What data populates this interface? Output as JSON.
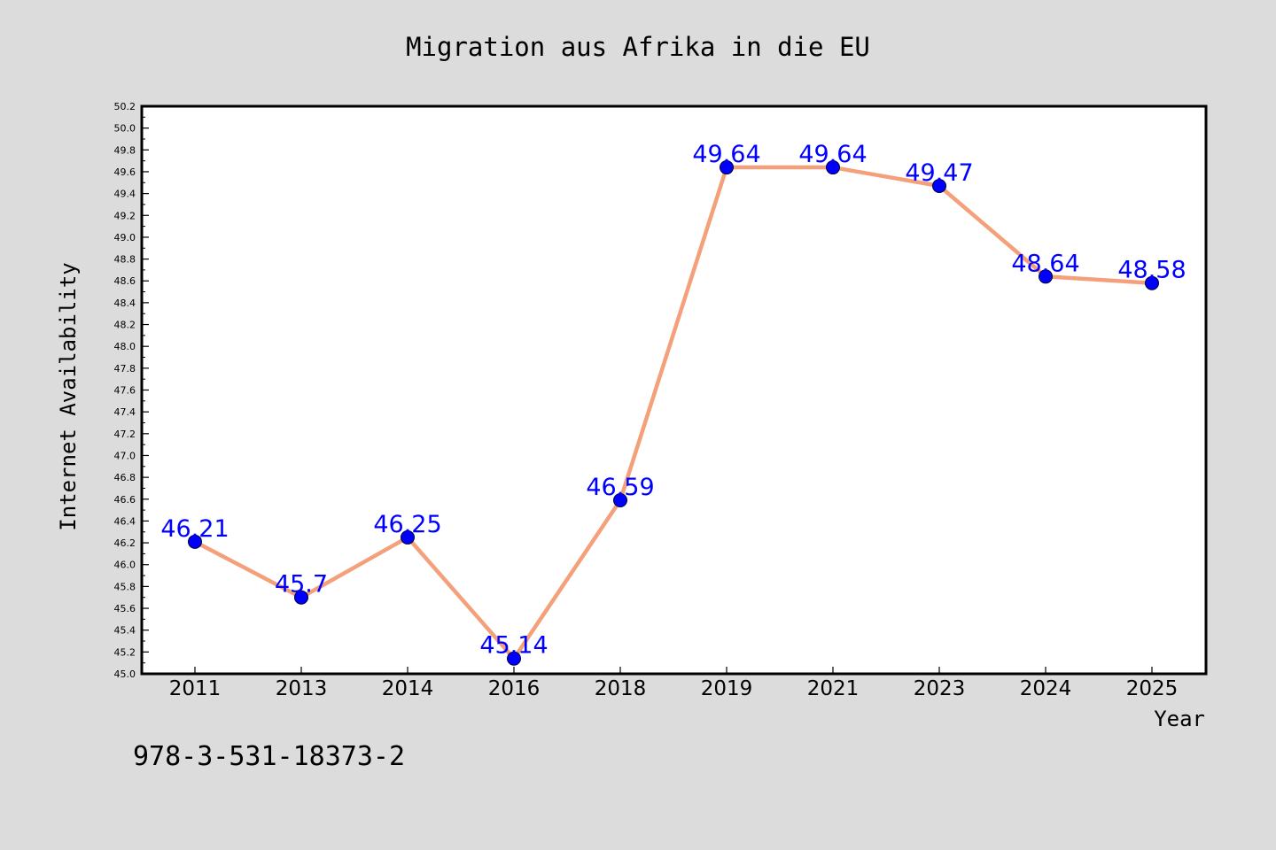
{
  "chart_data": {
    "type": "line",
    "title": "Migration aus Afrika in die EU",
    "xlabel": "Year",
    "ylabel": "Internet Availability",
    "categories": [
      "2011",
      "2013",
      "2014",
      "2016",
      "2018",
      "2019",
      "2021",
      "2023",
      "2024",
      "2025"
    ],
    "series": [
      {
        "values": [
          46.21,
          45.7,
          46.25,
          45.14,
          46.59,
          49.64,
          49.64,
          49.47,
          48.64,
          48.58
        ],
        "line_color": "#f4a07a",
        "marker_color": "#0000ff",
        "label_color": "#0000ff"
      }
    ],
    "data_labels": [
      "46.21",
      "45.7",
      "46.25",
      "45.14",
      "46.59",
      "49.64",
      "49.64",
      "49.47",
      "48.64",
      "48.58"
    ],
    "ylim": [
      45.0,
      50.2
    ],
    "ytick_step": 0.2,
    "grid": false,
    "legend": "none"
  },
  "annotation": "978-3-531-18373-2",
  "colors": {
    "page_background": "#dcdcdc",
    "plot_background": "#ffffff",
    "axis": "#000000"
  }
}
